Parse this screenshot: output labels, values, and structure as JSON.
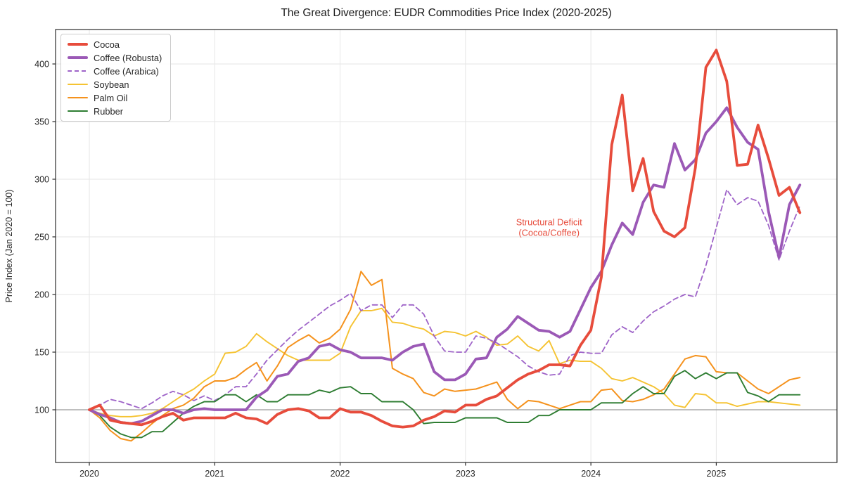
{
  "chart_data": {
    "type": "line",
    "title": "The Great Divergence: EUDR Commodities Price Index (2020-2025)",
    "ylabel": "Price Index (Jan 2020 = 100)",
    "xlabel": "",
    "x_start": "2020-01",
    "x_step_months": 1,
    "n_points": 69,
    "xtick_labels": [
      "2020",
      "2021",
      "2022",
      "2023",
      "2024",
      "2025"
    ],
    "xtick_month_index": [
      0,
      12,
      24,
      36,
      48,
      60
    ],
    "yticks": [
      100,
      150,
      200,
      250,
      300,
      350,
      400
    ],
    "ylim": [
      54,
      430
    ],
    "grid": true,
    "baseline_value": 100,
    "legend_position": "upper left",
    "annotation": {
      "line1": "Structural Deficit",
      "line2": "(Cocoa/Coffee)",
      "color": "#e74c3c",
      "month_index": 44,
      "y_value": 258
    },
    "series": [
      {
        "name": "Cocoa",
        "color": "#e74c3c",
        "width": 3.8,
        "dash": null,
        "values": [
          100,
          104,
          91,
          89,
          88,
          87,
          90,
          94,
          97,
          91,
          93,
          93,
          93,
          93,
          97,
          93,
          92,
          88,
          96,
          100,
          101,
          99,
          93,
          93,
          101,
          98,
          98,
          95,
          90,
          86,
          85,
          86,
          91,
          94,
          99,
          98,
          104,
          104,
          109,
          112,
          119,
          126,
          131,
          134,
          139,
          139,
          138,
          156,
          169,
          215,
          330,
          373,
          290,
          318,
          272,
          255,
          250,
          258,
          310,
          397,
          412,
          385,
          312,
          313,
          347,
          318,
          286,
          293,
          271
        ]
      },
      {
        "name": "Coffee (Robusta)",
        "color": "#9b59b6",
        "width": 3.8,
        "dash": null,
        "values": [
          100,
          96,
          93,
          89,
          88,
          90,
          95,
          100,
          100,
          97,
          100,
          101,
          100,
          100,
          100,
          100,
          111,
          117,
          129,
          131,
          142,
          145,
          155,
          157,
          152,
          150,
          145,
          145,
          145,
          143,
          150,
          155,
          157,
          133,
          126,
          126,
          131,
          144,
          145,
          163,
          170,
          181,
          175,
          169,
          168,
          163,
          168,
          187,
          206,
          220,
          243,
          262,
          252,
          280,
          295,
          293,
          331,
          308,
          317,
          340,
          350,
          362,
          345,
          332,
          326,
          272,
          232,
          278,
          295
        ]
      },
      {
        "name": "Coffee (Arabica)",
        "color": "#9e63c8",
        "width": 1.8,
        "dash": "7 4.5",
        "values": [
          100,
          104,
          109,
          107,
          104,
          101,
          106,
          112,
          116,
          113,
          108,
          112,
          108,
          113,
          120,
          120,
          131,
          143,
          152,
          161,
          169,
          176,
          183,
          190,
          195,
          201,
          186,
          191,
          191,
          180,
          191,
          191,
          183,
          164,
          151,
          150,
          150,
          164,
          162,
          158,
          152,
          146,
          138,
          133,
          130,
          131,
          147,
          150,
          149,
          149,
          165,
          172,
          167,
          177,
          185,
          190,
          196,
          200,
          198,
          225,
          258,
          291,
          278,
          284,
          281,
          260,
          230,
          255,
          277
        ]
      },
      {
        "name": "Soybean",
        "color": "#f5c332",
        "width": 1.9,
        "dash": null,
        "values": [
          100,
          97,
          95,
          94,
          94,
          95,
          97,
          101,
          107,
          113,
          118,
          125,
          131,
          149,
          150,
          155,
          166,
          159,
          153,
          147,
          143,
          143,
          143,
          143,
          149,
          172,
          186,
          186,
          188,
          176,
          175,
          172,
          170,
          164,
          168,
          167,
          164,
          168,
          163,
          156,
          157,
          164,
          155,
          151,
          160,
          140,
          143,
          142,
          142,
          136,
          127,
          125,
          128,
          124,
          120,
          114,
          104,
          102,
          114,
          113,
          106,
          106,
          103,
          105,
          107,
          107,
          106,
          105,
          104
        ]
      },
      {
        "name": "Palm Oil",
        "color": "#f5921d",
        "width": 2.0,
        "dash": null,
        "values": [
          100,
          93,
          82,
          75,
          73,
          80,
          88,
          95,
          101,
          104,
          110,
          120,
          125,
          125,
          128,
          135,
          141,
          125,
          138,
          154,
          160,
          165,
          158,
          162,
          170,
          187,
          220,
          208,
          213,
          136,
          131,
          127,
          115,
          112,
          118,
          116,
          117,
          118,
          121,
          124,
          109,
          101,
          108,
          107,
          104,
          101,
          104,
          107,
          107,
          117,
          118,
          108,
          107,
          109,
          113,
          118,
          131,
          144,
          147,
          146,
          133,
          132,
          132,
          125,
          118,
          114,
          120,
          126,
          128
        ]
      },
      {
        "name": "Rubber",
        "color": "#2e7d32",
        "width": 1.9,
        "dash": null,
        "values": [
          100,
          95,
          85,
          79,
          76,
          76,
          81,
          81,
          89,
          97,
          103,
          107,
          107,
          113,
          113,
          107,
          113,
          107,
          107,
          113,
          113,
          113,
          117,
          115,
          119,
          120,
          114,
          114,
          107,
          107,
          107,
          100,
          88,
          89,
          89,
          89,
          93,
          93,
          93,
          93,
          89,
          89,
          89,
          95,
          95,
          100,
          100,
          100,
          100,
          106,
          106,
          106,
          114,
          120,
          114,
          114,
          129,
          134,
          127,
          132,
          127,
          132,
          132,
          115,
          112,
          107,
          113,
          113,
          113
        ]
      }
    ],
    "draw_order": [
      3,
      2,
      4,
      5,
      1,
      0
    ],
    "colors": {
      "grid": "#e6e6e6",
      "baseline": "#999999",
      "spine": "#2b2b2b",
      "tick_label": "#262626",
      "title": "#1a1a1a"
    }
  }
}
